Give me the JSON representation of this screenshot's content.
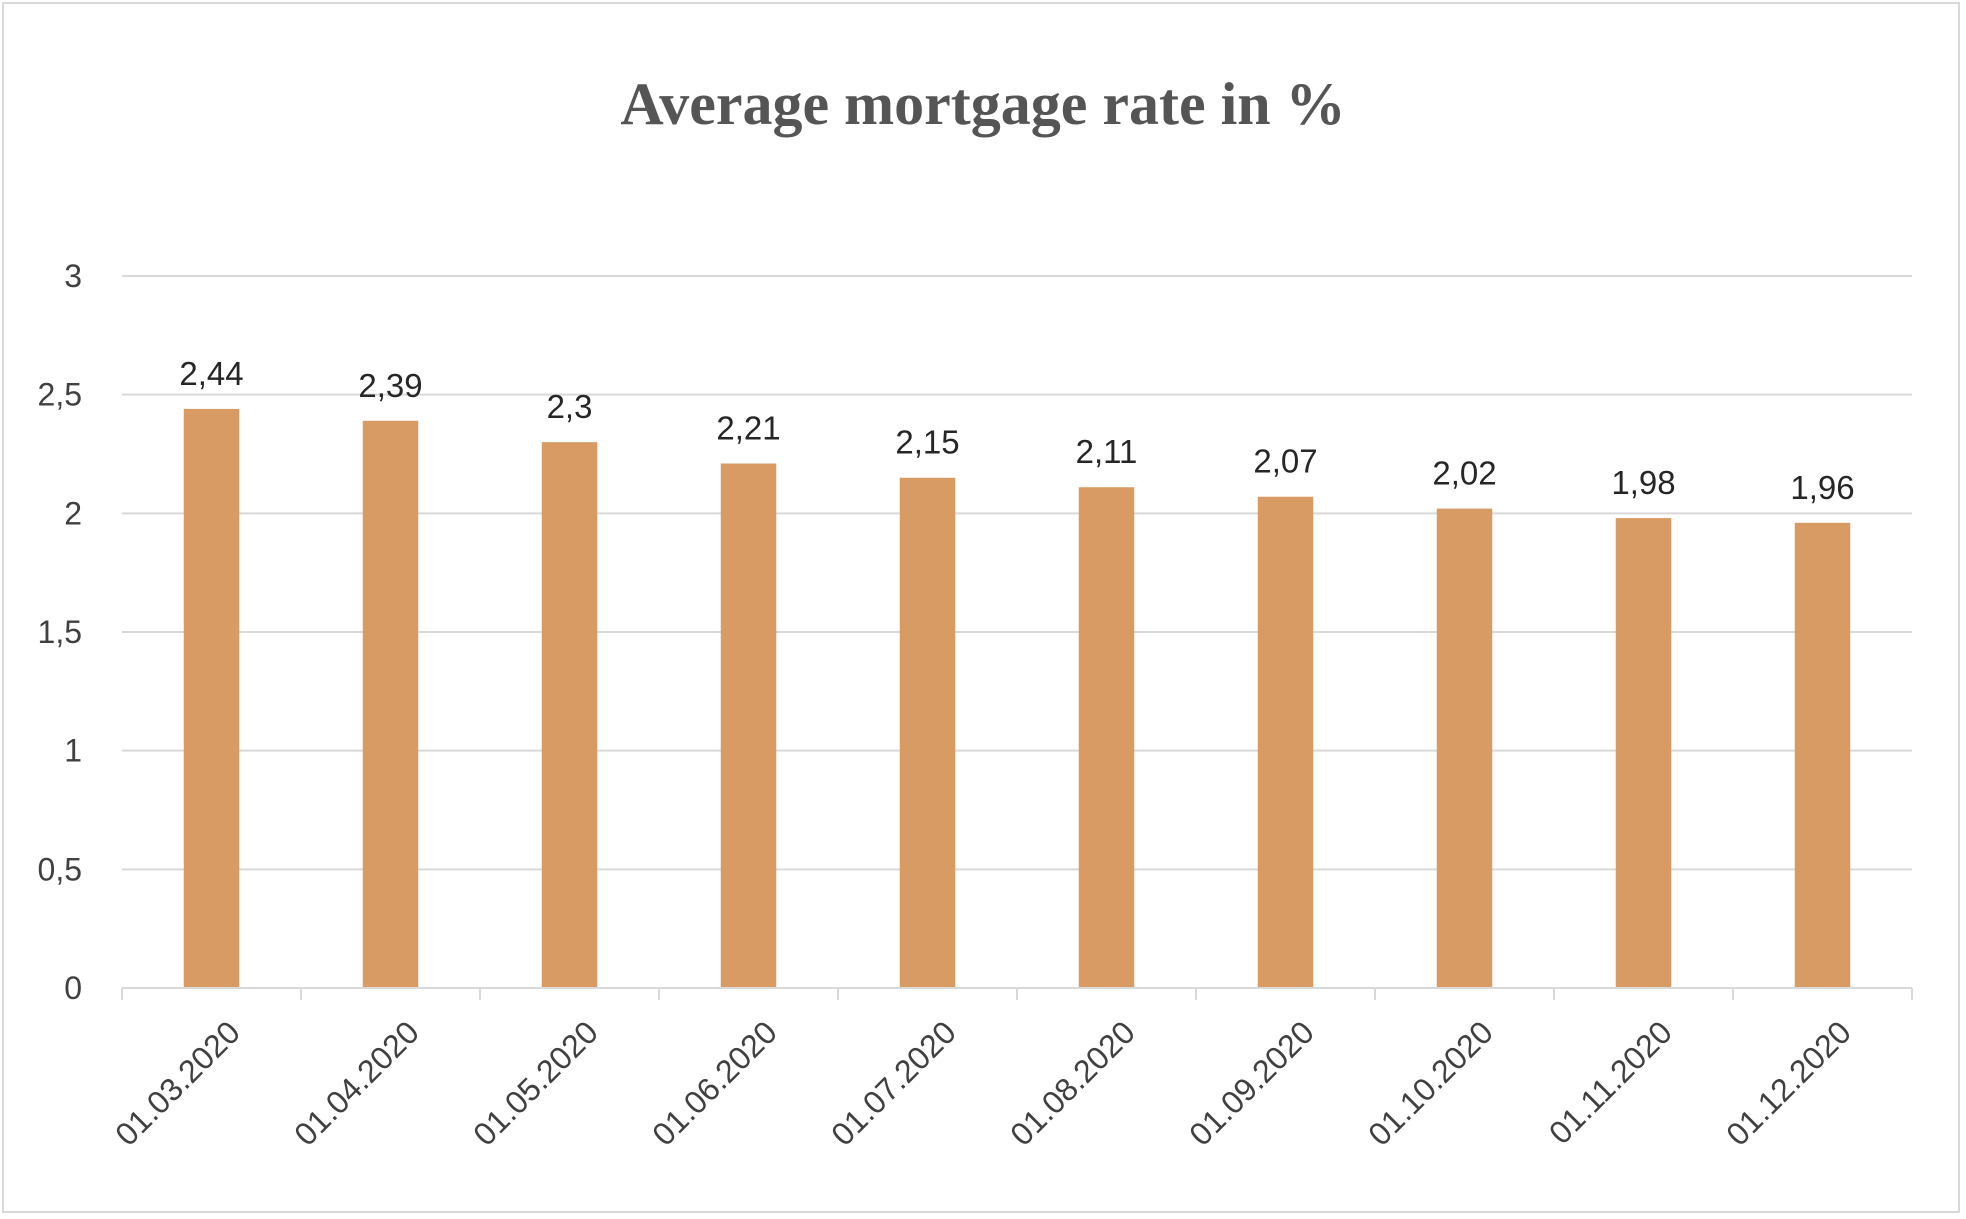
{
  "chart_data": {
    "type": "bar",
    "title": "Average mortgage rate in %",
    "xlabel": "",
    "ylabel": "",
    "categories": [
      "01.03.2020",
      "01.04.2020",
      "01.05.2020",
      "01.06.2020",
      "01.07.2020",
      "01.08.2020",
      "01.09.2020",
      "01.10.2020",
      "01.11.2020",
      "01.12.2020"
    ],
    "values": [
      2.44,
      2.39,
      2.3,
      2.21,
      2.15,
      2.11,
      2.07,
      2.02,
      1.98,
      1.96
    ],
    "value_labels": [
      "2,44",
      "2,39",
      "2,3",
      "2,21",
      "2,15",
      "2,11",
      "2,07",
      "2,02",
      "1,98",
      "1,96"
    ],
    "ylim": [
      0,
      3
    ],
    "yticks": [
      0,
      0.5,
      1,
      1.5,
      2,
      2.5,
      3
    ],
    "ytick_labels": [
      "0",
      "0,5",
      "1",
      "1,5",
      "2",
      "2,5",
      "3"
    ],
    "grid": true,
    "legend": "none",
    "bar_color": "#D99B64",
    "grid_color": "#D9D9D9"
  }
}
